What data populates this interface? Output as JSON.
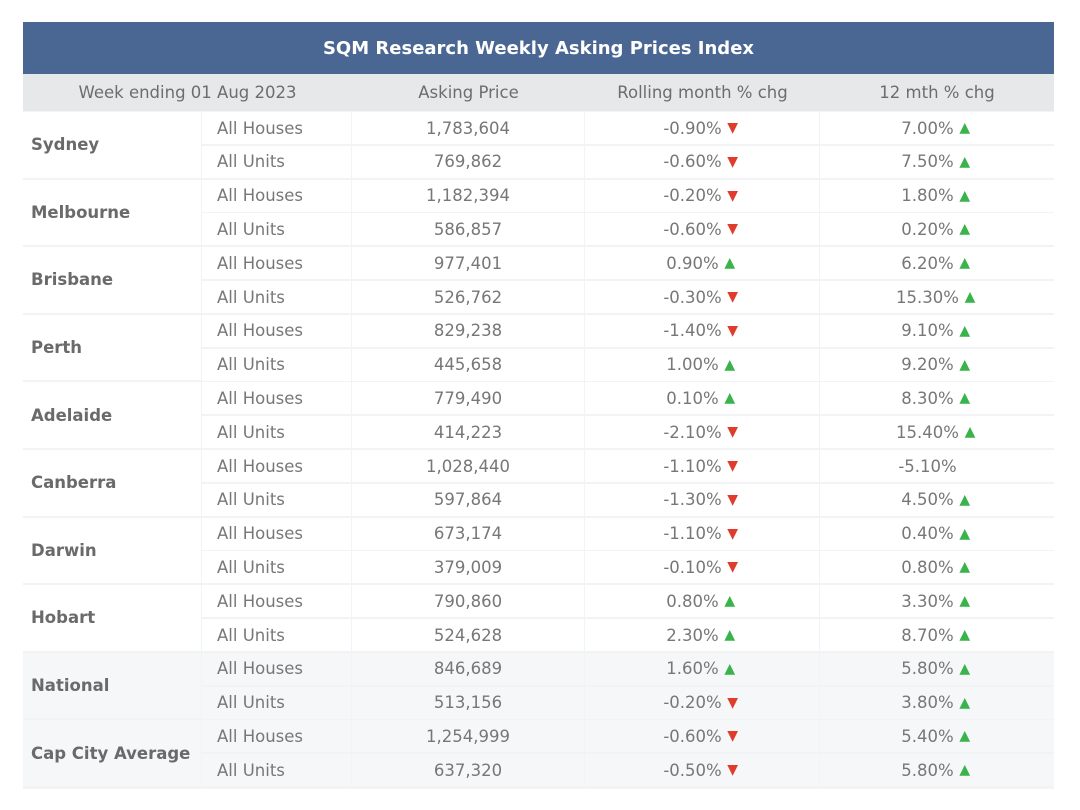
{
  "title": "SQM Research Weekly Asking Prices Index",
  "headers": [
    "Week ending 01 Aug 2023",
    "Asking Price",
    "Rolling month % chg",
    "12 mth % chg"
  ],
  "colors": {
    "header_bg": "#4a6793",
    "up": "#39b34a",
    "down": "#e03b2b",
    "row_bg": "#ffffff",
    "summary_bg": "#f5f7f9"
  },
  "chart_data": {
    "type": "table",
    "title": "SQM Research Weekly Asking Prices Index",
    "columns": [
      "Week ending 01 Aug 2023",
      "Asking Price",
      "Rolling month % chg",
      "12 mth % chg"
    ],
    "groups": [
      {
        "name": "Sydney",
        "rows": [
          {
            "type": "All Houses",
            "price": "1,783,604",
            "month": "-0.90%",
            "month_dir": "down",
            "year": "7.00%",
            "year_dir": "up"
          },
          {
            "type": "All Units",
            "price": "769,862",
            "month": "-0.60%",
            "month_dir": "down",
            "year": "7.50%",
            "year_dir": "up"
          }
        ]
      },
      {
        "name": "Melbourne",
        "rows": [
          {
            "type": "All Houses",
            "price": "1,182,394",
            "month": "-0.20%",
            "month_dir": "down",
            "year": "1.80%",
            "year_dir": "up"
          },
          {
            "type": "All Units",
            "price": "586,857",
            "month": "-0.60%",
            "month_dir": "down",
            "year": "0.20%",
            "year_dir": "up"
          }
        ]
      },
      {
        "name": "Brisbane",
        "rows": [
          {
            "type": "All Houses",
            "price": "977,401",
            "month": "0.90%",
            "month_dir": "up",
            "year": "6.20%",
            "year_dir": "up"
          },
          {
            "type": "All Units",
            "price": "526,762",
            "month": "-0.30%",
            "month_dir": "down",
            "year": "15.30%",
            "year_dir": "up"
          }
        ]
      },
      {
        "name": "Perth",
        "rows": [
          {
            "type": "All Houses",
            "price": "829,238",
            "month": "-1.40%",
            "month_dir": "down",
            "year": "9.10%",
            "year_dir": "up"
          },
          {
            "type": "All Units",
            "price": "445,658",
            "month": "1.00%",
            "month_dir": "up",
            "year": "9.20%",
            "year_dir": "up"
          }
        ]
      },
      {
        "name": "Adelaide",
        "rows": [
          {
            "type": "All Houses",
            "price": "779,490",
            "month": "0.10%",
            "month_dir": "up",
            "year": "8.30%",
            "year_dir": "up"
          },
          {
            "type": "All Units",
            "price": "414,223",
            "month": "-2.10%",
            "month_dir": "down",
            "year": "15.40%",
            "year_dir": "up"
          }
        ]
      },
      {
        "name": "Canberra",
        "rows": [
          {
            "type": "All Houses",
            "price": "1,028,440",
            "month": "-1.10%",
            "month_dir": "down",
            "year": "-5.10%",
            "year_dir": "none"
          },
          {
            "type": "All Units",
            "price": "597,864",
            "month": "-1.30%",
            "month_dir": "down",
            "year": "4.50%",
            "year_dir": "up"
          }
        ]
      },
      {
        "name": "Darwin",
        "rows": [
          {
            "type": "All Houses",
            "price": "673,174",
            "month": "-1.10%",
            "month_dir": "down",
            "year": "0.40%",
            "year_dir": "up"
          },
          {
            "type": "All Units",
            "price": "379,009",
            "month": "-0.10%",
            "month_dir": "down",
            "year": "0.80%",
            "year_dir": "up"
          }
        ]
      },
      {
        "name": "Hobart",
        "rows": [
          {
            "type": "All Houses",
            "price": "790,860",
            "month": "0.80%",
            "month_dir": "up",
            "year": "3.30%",
            "year_dir": "up"
          },
          {
            "type": "All Units",
            "price": "524,628",
            "month": "2.30%",
            "month_dir": "up",
            "year": "8.70%",
            "year_dir": "up"
          }
        ]
      },
      {
        "name": "National",
        "summary": true,
        "rows": [
          {
            "type": "All Houses",
            "price": "846,689",
            "month": "1.60%",
            "month_dir": "up",
            "year": "5.80%",
            "year_dir": "up"
          },
          {
            "type": "All Units",
            "price": "513,156",
            "month": "-0.20%",
            "month_dir": "down",
            "year": "3.80%",
            "year_dir": "up"
          }
        ]
      },
      {
        "name": "Cap City Average",
        "summary": true,
        "rows": [
          {
            "type": "All Houses",
            "price": "1,254,999",
            "month": "-0.60%",
            "month_dir": "down",
            "year": "5.40%",
            "year_dir": "up"
          },
          {
            "type": "All Units",
            "price": "637,320",
            "month": "-0.50%",
            "month_dir": "down",
            "year": "5.80%",
            "year_dir": "up"
          }
        ]
      }
    ]
  }
}
